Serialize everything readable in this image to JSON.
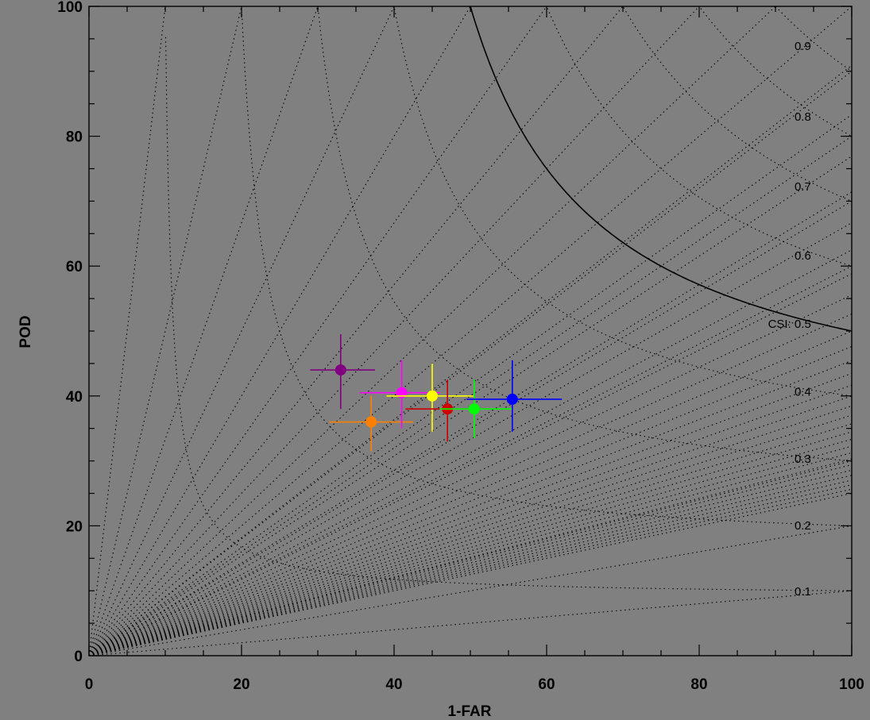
{
  "chart_data": {
    "type": "scatter",
    "title": "",
    "xlabel": "1-FAR",
    "ylabel": "POD",
    "xlim": [
      0,
      100
    ],
    "ylim": [
      0,
      100
    ],
    "x_ticks": [
      "0",
      "20",
      "40",
      "60",
      "80",
      "100"
    ],
    "y_ticks": [
      "0",
      "20",
      "40",
      "60",
      "80",
      "100"
    ],
    "background": "#808080",
    "bias_lines": [
      0.1,
      0.2,
      0.3,
      0.4,
      0.5,
      0.6,
      0.7,
      0.8,
      0.9
    ],
    "csi_labels": [
      {
        "value": 0.1,
        "text": "0.1"
      },
      {
        "value": 0.2,
        "text": "0.2"
      },
      {
        "value": 0.3,
        "text": "0.3"
      },
      {
        "value": 0.4,
        "text": "0.4"
      },
      {
        "value": 0.5,
        "text": "CSI: 0.5"
      },
      {
        "value": 0.6,
        "text": "0.6"
      },
      {
        "value": 0.7,
        "text": "0.7"
      },
      {
        "value": 0.8,
        "text": "0.8"
      },
      {
        "value": 0.9,
        "text": "0.9"
      }
    ],
    "csi_highlight": 0.5,
    "points": [
      {
        "color": "#800080",
        "x": 33.0,
        "y": 44.0,
        "x_err": [
          29.0,
          37.5
        ],
        "y_err": [
          38.0,
          49.5
        ]
      },
      {
        "color": "#ff8000",
        "x": 37.0,
        "y": 36.0,
        "x_err": [
          31.5,
          42.5
        ],
        "y_err": [
          31.5,
          40.0
        ]
      },
      {
        "color": "#ff00ff",
        "x": 41.0,
        "y": 40.5,
        "x_err": [
          35.5,
          46.0
        ],
        "y_err": [
          35.0,
          45.5
        ]
      },
      {
        "color": "#ffff00",
        "x": 45.0,
        "y": 40.0,
        "x_err": [
          39.0,
          50.5
        ],
        "y_err": [
          34.5,
          45.0
        ]
      },
      {
        "color": "#cc0000",
        "x": 47.0,
        "y": 38.0,
        "x_err": [
          41.5,
          52.5
        ],
        "y_err": [
          33.0,
          42.5
        ]
      },
      {
        "color": "#00ff00",
        "x": 50.5,
        "y": 38.0,
        "x_err": [
          46.0,
          55.5
        ],
        "y_err": [
          33.5,
          42.5
        ]
      },
      {
        "color": "#0000ff",
        "x": 55.5,
        "y": 39.5,
        "x_err": [
          49.5,
          62.0
        ],
        "y_err": [
          34.5,
          45.5
        ]
      }
    ]
  }
}
